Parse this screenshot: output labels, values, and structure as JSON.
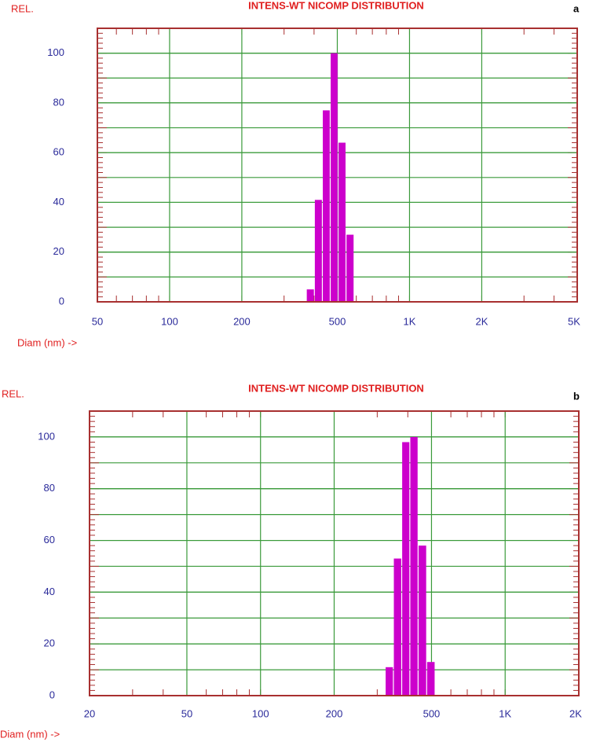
{
  "chart_data": [
    {
      "type": "bar",
      "title": "INTENS-WT NICOMP DISTRIBUTION",
      "panel": "a",
      "y_label": "REL.",
      "x_label": "Diam (nm) ->",
      "x": [
        386,
        417,
        450,
        485,
        523,
        565
      ],
      "values": [
        5,
        41,
        77,
        100,
        64,
        27
      ],
      "color": "#cc00cc",
      "xscale": "log",
      "xlim": [
        50,
        5000
      ],
      "xticks": [
        50,
        100,
        200,
        500,
        {
          "value": 1000,
          "label": "1K"
        },
        {
          "value": 2000,
          "label": "2K"
        },
        {
          "value": 5000,
          "label": "5K"
        }
      ],
      "ylim": [
        0,
        110
      ],
      "yticks": [
        0,
        20,
        40,
        60,
        80,
        100
      ],
      "grid": true
    },
    {
      "type": "bar",
      "title": "INTENS-WT NICOMP DISTRIBUTION",
      "panel": "b",
      "y_label": "REL.",
      "x_label": "Diam (nm) ->",
      "x": [
        336,
        363,
        393,
        423,
        459,
        497
      ],
      "values": [
        11,
        53,
        98,
        100,
        58,
        13
      ],
      "color": "#cc00cc",
      "xscale": "log",
      "xlim": [
        20,
        2000
      ],
      "xticks": [
        20,
        50,
        100,
        200,
        500,
        {
          "value": 1000,
          "label": "1K"
        },
        {
          "value": 2000,
          "label": "2K"
        }
      ],
      "ylim": [
        0,
        110
      ],
      "yticks": [
        0,
        20,
        40,
        60,
        80,
        100
      ],
      "grid": true
    }
  ]
}
